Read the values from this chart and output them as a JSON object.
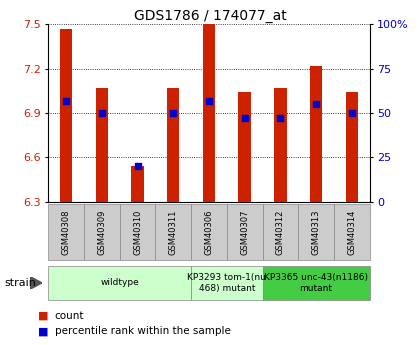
{
  "title": "GDS1786 / 174077_at",
  "samples": [
    "GSM40308",
    "GSM40309",
    "GSM40310",
    "GSM40311",
    "GSM40306",
    "GSM40307",
    "GSM40312",
    "GSM40313",
    "GSM40314"
  ],
  "counts": [
    7.47,
    7.07,
    6.54,
    7.07,
    7.5,
    7.04,
    7.07,
    7.22,
    7.04
  ],
  "percentiles": [
    57,
    50,
    20,
    50,
    57,
    47,
    47,
    55,
    50
  ],
  "ylim_left": [
    6.3,
    7.5
  ],
  "yticks_left": [
    6.3,
    6.6,
    6.9,
    7.2,
    7.5
  ],
  "ylim_right": [
    0,
    100
  ],
  "yticks_right": [
    0,
    25,
    50,
    75,
    100
  ],
  "bar_color": "#cc2200",
  "dot_color": "#0000cc",
  "bar_width": 0.35,
  "groups": [
    {
      "label": "wildtype",
      "start": 0,
      "end": 4,
      "color": "#ccffcc"
    },
    {
      "label": "KP3293 tom-1(nu\n468) mutant",
      "start": 4,
      "end": 6,
      "color": "#ccffcc"
    },
    {
      "label": "KP3365 unc-43(n1186)\nmutant",
      "start": 6,
      "end": 9,
      "color": "#44cc44"
    }
  ],
  "strain_label": "strain",
  "legend_count": "count",
  "legend_pct": "percentile rank within the sample",
  "bg_color": "#ffffff",
  "tick_bg": "#dddddd",
  "tick_label_color_left": "#cc2200",
  "tick_label_color_right": "#0000cc"
}
